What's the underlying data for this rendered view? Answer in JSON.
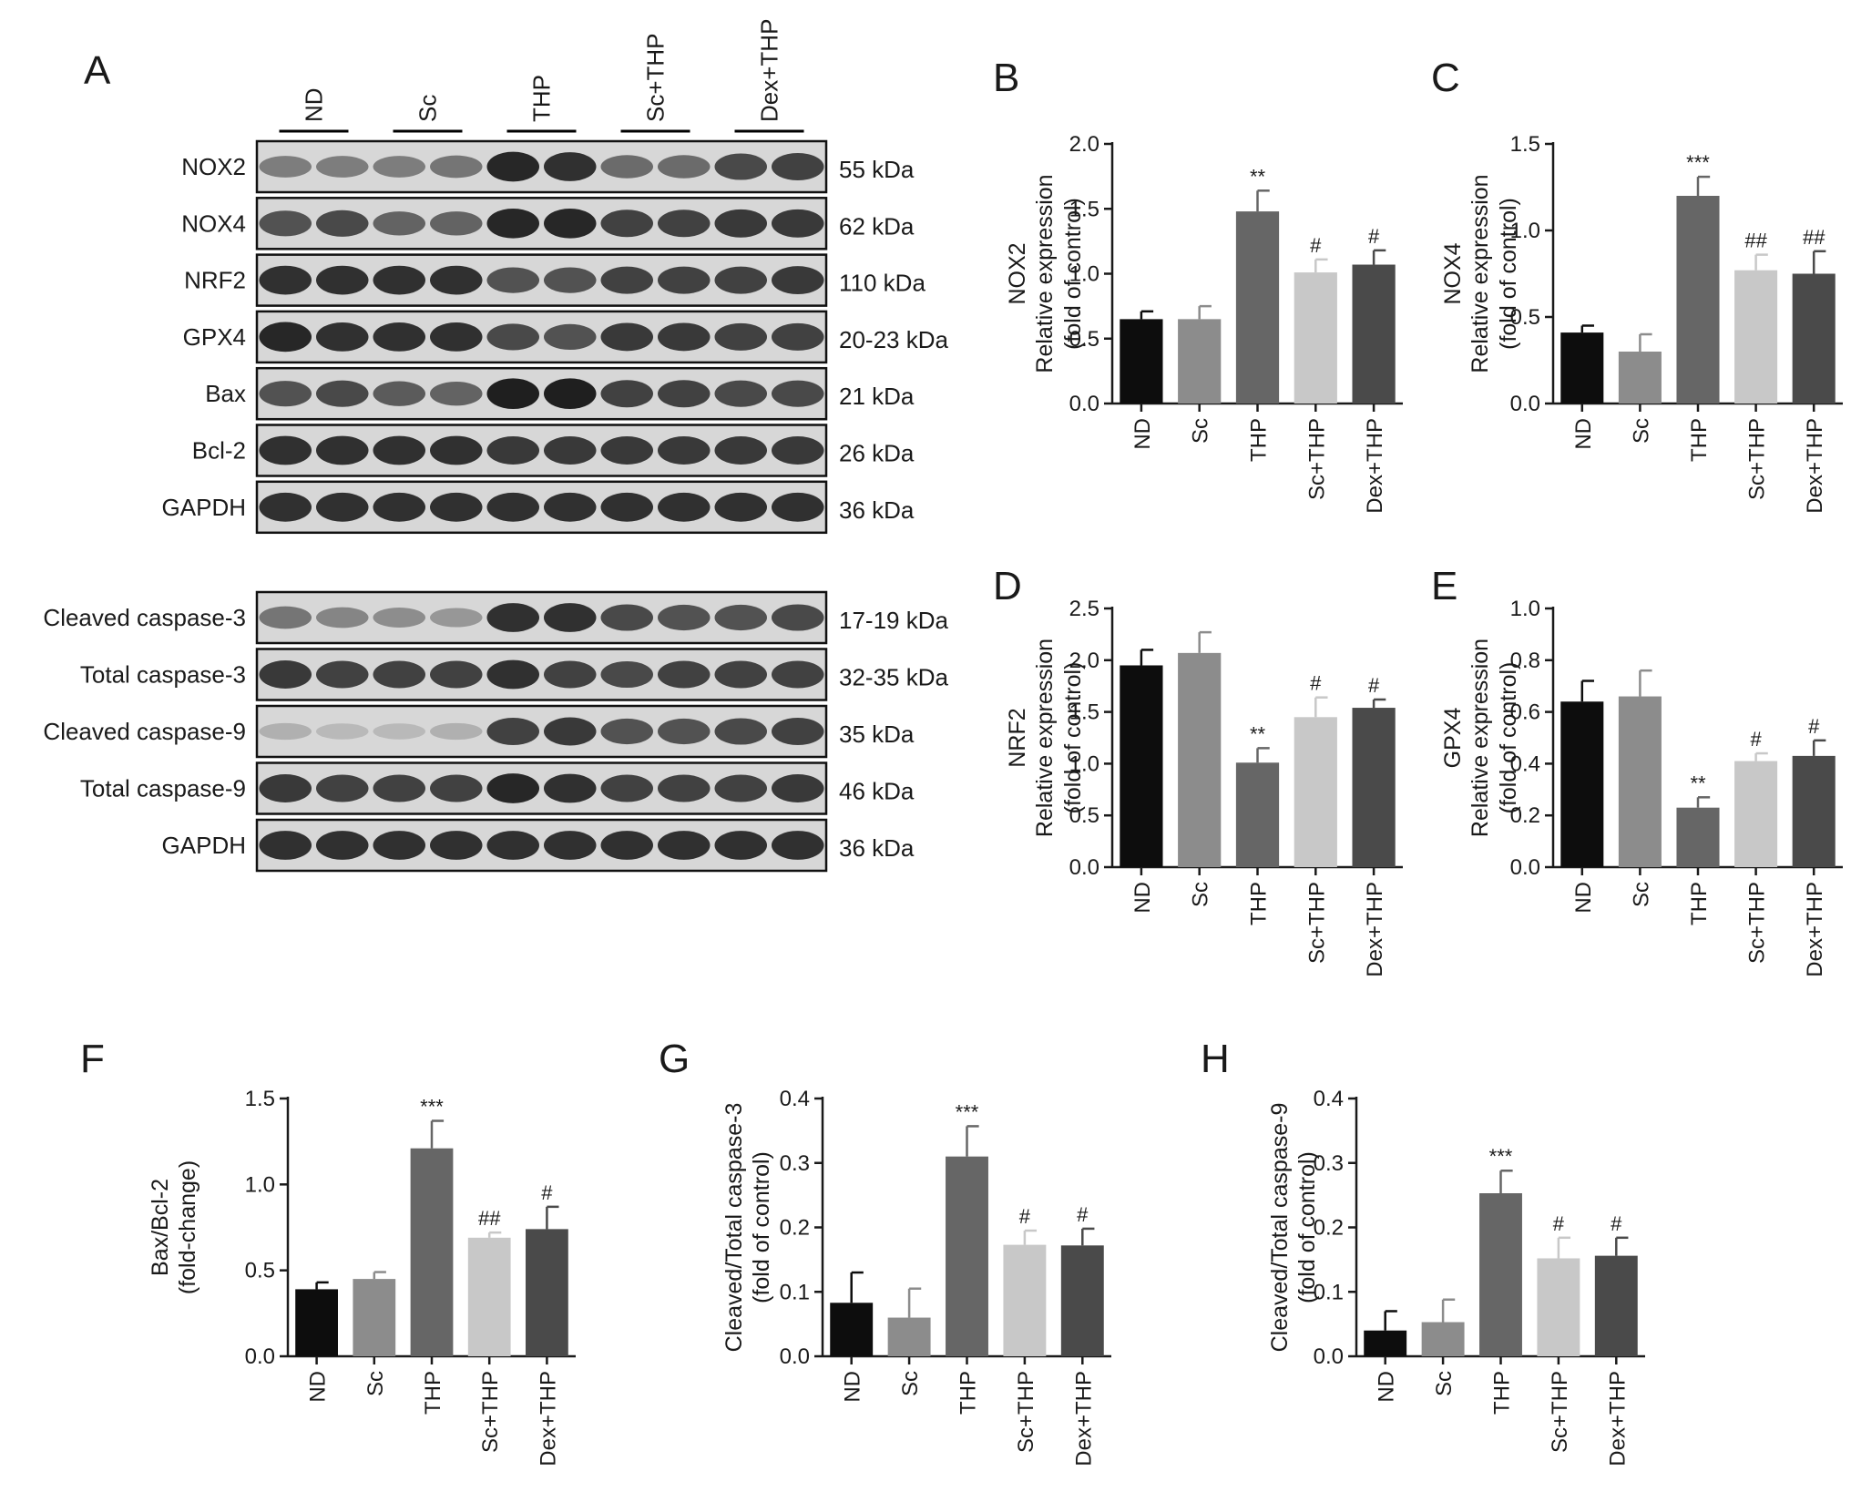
{
  "western_blot": {
    "panel": "A",
    "groups": [
      "ND",
      "Sc",
      "THP",
      "Sc+THP",
      "Dex+THP"
    ],
    "block1": [
      {
        "protein": "NOX2",
        "mw": "55 kDa"
      },
      {
        "protein": "NOX4",
        "mw": "62 kDa"
      },
      {
        "protein": "NRF2",
        "mw": "110 kDa"
      },
      {
        "protein": "GPX4",
        "mw": "20-23 kDa"
      },
      {
        "protein": "Bax",
        "mw": "21 kDa"
      },
      {
        "protein": "Bcl-2",
        "mw": "26 kDa"
      },
      {
        "protein": "GAPDH",
        "mw": "36 kDa"
      }
    ],
    "block2": [
      {
        "protein": "Cleaved caspase-3",
        "mw": "17-19 kDa"
      },
      {
        "protein": "Total caspase-3",
        "mw": "32-35 kDa"
      },
      {
        "protein": "Cleaved caspase-9",
        "mw": "35 kDa"
      },
      {
        "protein": "Total caspase-9",
        "mw": "46 kDa"
      },
      {
        "protein": "GAPDH",
        "mw": "36 kDa"
      }
    ],
    "band_intensity": {
      "NOX2": [
        0.45,
        0.45,
        0.45,
        0.5,
        0.95,
        0.9,
        0.55,
        0.55,
        0.75,
        0.8
      ],
      "NOX4": [
        0.7,
        0.75,
        0.6,
        0.6,
        0.95,
        0.95,
        0.8,
        0.8,
        0.85,
        0.85
      ],
      "NRF2": [
        0.9,
        0.9,
        0.9,
        0.9,
        0.7,
        0.7,
        0.8,
        0.8,
        0.8,
        0.85
      ],
      "GPX4": [
        0.95,
        0.9,
        0.9,
        0.9,
        0.75,
        0.7,
        0.85,
        0.85,
        0.8,
        0.8
      ],
      "Bax": [
        0.7,
        0.75,
        0.65,
        0.6,
        1.0,
        1.0,
        0.8,
        0.8,
        0.75,
        0.75
      ],
      "Bcl-2": [
        0.9,
        0.9,
        0.9,
        0.9,
        0.85,
        0.85,
        0.85,
        0.85,
        0.85,
        0.85
      ],
      "GAPDH": [
        0.9,
        0.9,
        0.9,
        0.9,
        0.9,
        0.9,
        0.9,
        0.9,
        0.9,
        0.9
      ],
      "Cleaved caspase-3": [
        0.5,
        0.4,
        0.35,
        0.3,
        0.9,
        0.9,
        0.75,
        0.7,
        0.7,
        0.75
      ],
      "Total caspase-3": [
        0.85,
        0.8,
        0.8,
        0.8,
        0.9,
        0.8,
        0.75,
        0.8,
        0.8,
        0.8
      ],
      "Cleaved caspase-9": [
        0.15,
        0.1,
        0.1,
        0.15,
        0.8,
        0.85,
        0.7,
        0.7,
        0.75,
        0.8
      ],
      "Total caspase-9": [
        0.85,
        0.8,
        0.8,
        0.8,
        0.95,
        0.9,
        0.8,
        0.8,
        0.8,
        0.85
      ],
      "GAPDH_2": [
        0.9,
        0.9,
        0.9,
        0.9,
        0.9,
        0.9,
        0.9,
        0.9,
        0.9,
        0.9
      ]
    }
  },
  "chart_data": [
    {
      "panel": "B",
      "type": "bar",
      "categories": [
        "ND",
        "Sc",
        "THP",
        "Sc+THP",
        "Dex+THP"
      ],
      "values": [
        0.65,
        0.65,
        1.48,
        1.01,
        1.07
      ],
      "errors": [
        0.06,
        0.1,
        0.16,
        0.1,
        0.11
      ],
      "annotations": [
        "",
        "",
        "**",
        "#",
        "#"
      ],
      "ylabel_lines": [
        "NOX2",
        "Relative expression",
        "(fold of control)"
      ],
      "ylim": [
        0,
        2.0
      ],
      "yticks": [
        0.0,
        0.5,
        1.0,
        1.5,
        2.0
      ],
      "tick_format": "0.0"
    },
    {
      "panel": "C",
      "type": "bar",
      "categories": [
        "ND",
        "Sc",
        "THP",
        "Sc+THP",
        "Dex+THP"
      ],
      "values": [
        0.41,
        0.3,
        1.2,
        0.77,
        0.75
      ],
      "errors": [
        0.04,
        0.1,
        0.11,
        0.09,
        0.13
      ],
      "annotations": [
        "",
        "",
        "***",
        "##",
        "##"
      ],
      "ylabel_lines": [
        "NOX4",
        "Relative expression",
        "(fold of control)"
      ],
      "ylim": [
        0,
        1.5
      ],
      "yticks": [
        0.0,
        0.5,
        1.0,
        1.5
      ],
      "tick_format": "0.0"
    },
    {
      "panel": "D",
      "type": "bar",
      "categories": [
        "ND",
        "Sc",
        "THP",
        "Sc+THP",
        "Dex+THP"
      ],
      "values": [
        1.95,
        2.07,
        1.01,
        1.45,
        1.54
      ],
      "errors": [
        0.15,
        0.2,
        0.14,
        0.19,
        0.08
      ],
      "annotations": [
        "",
        "",
        "**",
        "#",
        "#"
      ],
      "ylabel_lines": [
        "NRF2",
        "Relative expression",
        "(fold of control)"
      ],
      "ylim": [
        0,
        2.5
      ],
      "yticks": [
        0.0,
        0.5,
        1.0,
        1.5,
        2.0,
        2.5
      ],
      "tick_format": "0.0"
    },
    {
      "panel": "E",
      "type": "bar",
      "categories": [
        "ND",
        "Sc",
        "THP",
        "Sc+THP",
        "Dex+THP"
      ],
      "values": [
        0.64,
        0.66,
        0.23,
        0.41,
        0.43
      ],
      "errors": [
        0.08,
        0.1,
        0.04,
        0.03,
        0.06
      ],
      "annotations": [
        "",
        "",
        "**",
        "#",
        "#"
      ],
      "ylabel_lines": [
        "GPX4",
        "Relative expression",
        "(fold of control)"
      ],
      "ylim": [
        0,
        1.0
      ],
      "yticks": [
        0.0,
        0.2,
        0.4,
        0.6,
        0.8,
        1.0
      ],
      "tick_format": "0.0"
    },
    {
      "panel": "F",
      "type": "bar",
      "categories": [
        "ND",
        "Sc",
        "THP",
        "Sc+THP",
        "Dex+THP"
      ],
      "values": [
        0.39,
        0.45,
        1.21,
        0.69,
        0.74
      ],
      "errors": [
        0.04,
        0.04,
        0.16,
        0.03,
        0.13
      ],
      "annotations": [
        "",
        "",
        "***",
        "##",
        "#"
      ],
      "ylabel_lines": [
        "Bax/Bcl-2",
        "(fold-change)"
      ],
      "ylim": [
        0,
        1.5
      ],
      "yticks": [
        0.0,
        0.5,
        1.0,
        1.5
      ],
      "tick_format": "0.0"
    },
    {
      "panel": "G",
      "type": "bar",
      "categories": [
        "ND",
        "Sc",
        "THP",
        "Sc+THP",
        "Dex+THP"
      ],
      "values": [
        0.083,
        0.06,
        0.31,
        0.173,
        0.172
      ],
      "errors": [
        0.047,
        0.045,
        0.047,
        0.022,
        0.026
      ],
      "annotations": [
        "",
        "",
        "***",
        "#",
        "#"
      ],
      "ylabel_lines": [
        "Cleaved/Total caspase-3",
        "(fold of control)"
      ],
      "ylim": [
        0,
        0.4
      ],
      "yticks": [
        0.0,
        0.1,
        0.2,
        0.3,
        0.4
      ],
      "tick_format": "0.0"
    },
    {
      "panel": "H",
      "type": "bar",
      "categories": [
        "ND",
        "Sc",
        "THP",
        "Sc+THP",
        "Dex+THP"
      ],
      "values": [
        0.04,
        0.053,
        0.253,
        0.152,
        0.156
      ],
      "errors": [
        0.03,
        0.035,
        0.035,
        0.032,
        0.028
      ],
      "annotations": [
        "",
        "",
        "***",
        "#",
        "#"
      ],
      "ylabel_lines": [
        "Cleaved/Total caspase-9",
        "(fold of control)"
      ],
      "ylim": [
        0,
        0.4
      ],
      "yticks": [
        0.0,
        0.1,
        0.2,
        0.3,
        0.4
      ],
      "tick_format": "0.0"
    }
  ],
  "colors": {
    "bars": [
      "#0d0d0d",
      "#8c8c8c",
      "#666666",
      "#c8c8c8",
      "#4a4a4a"
    ],
    "axis": "#1a1a1a"
  }
}
